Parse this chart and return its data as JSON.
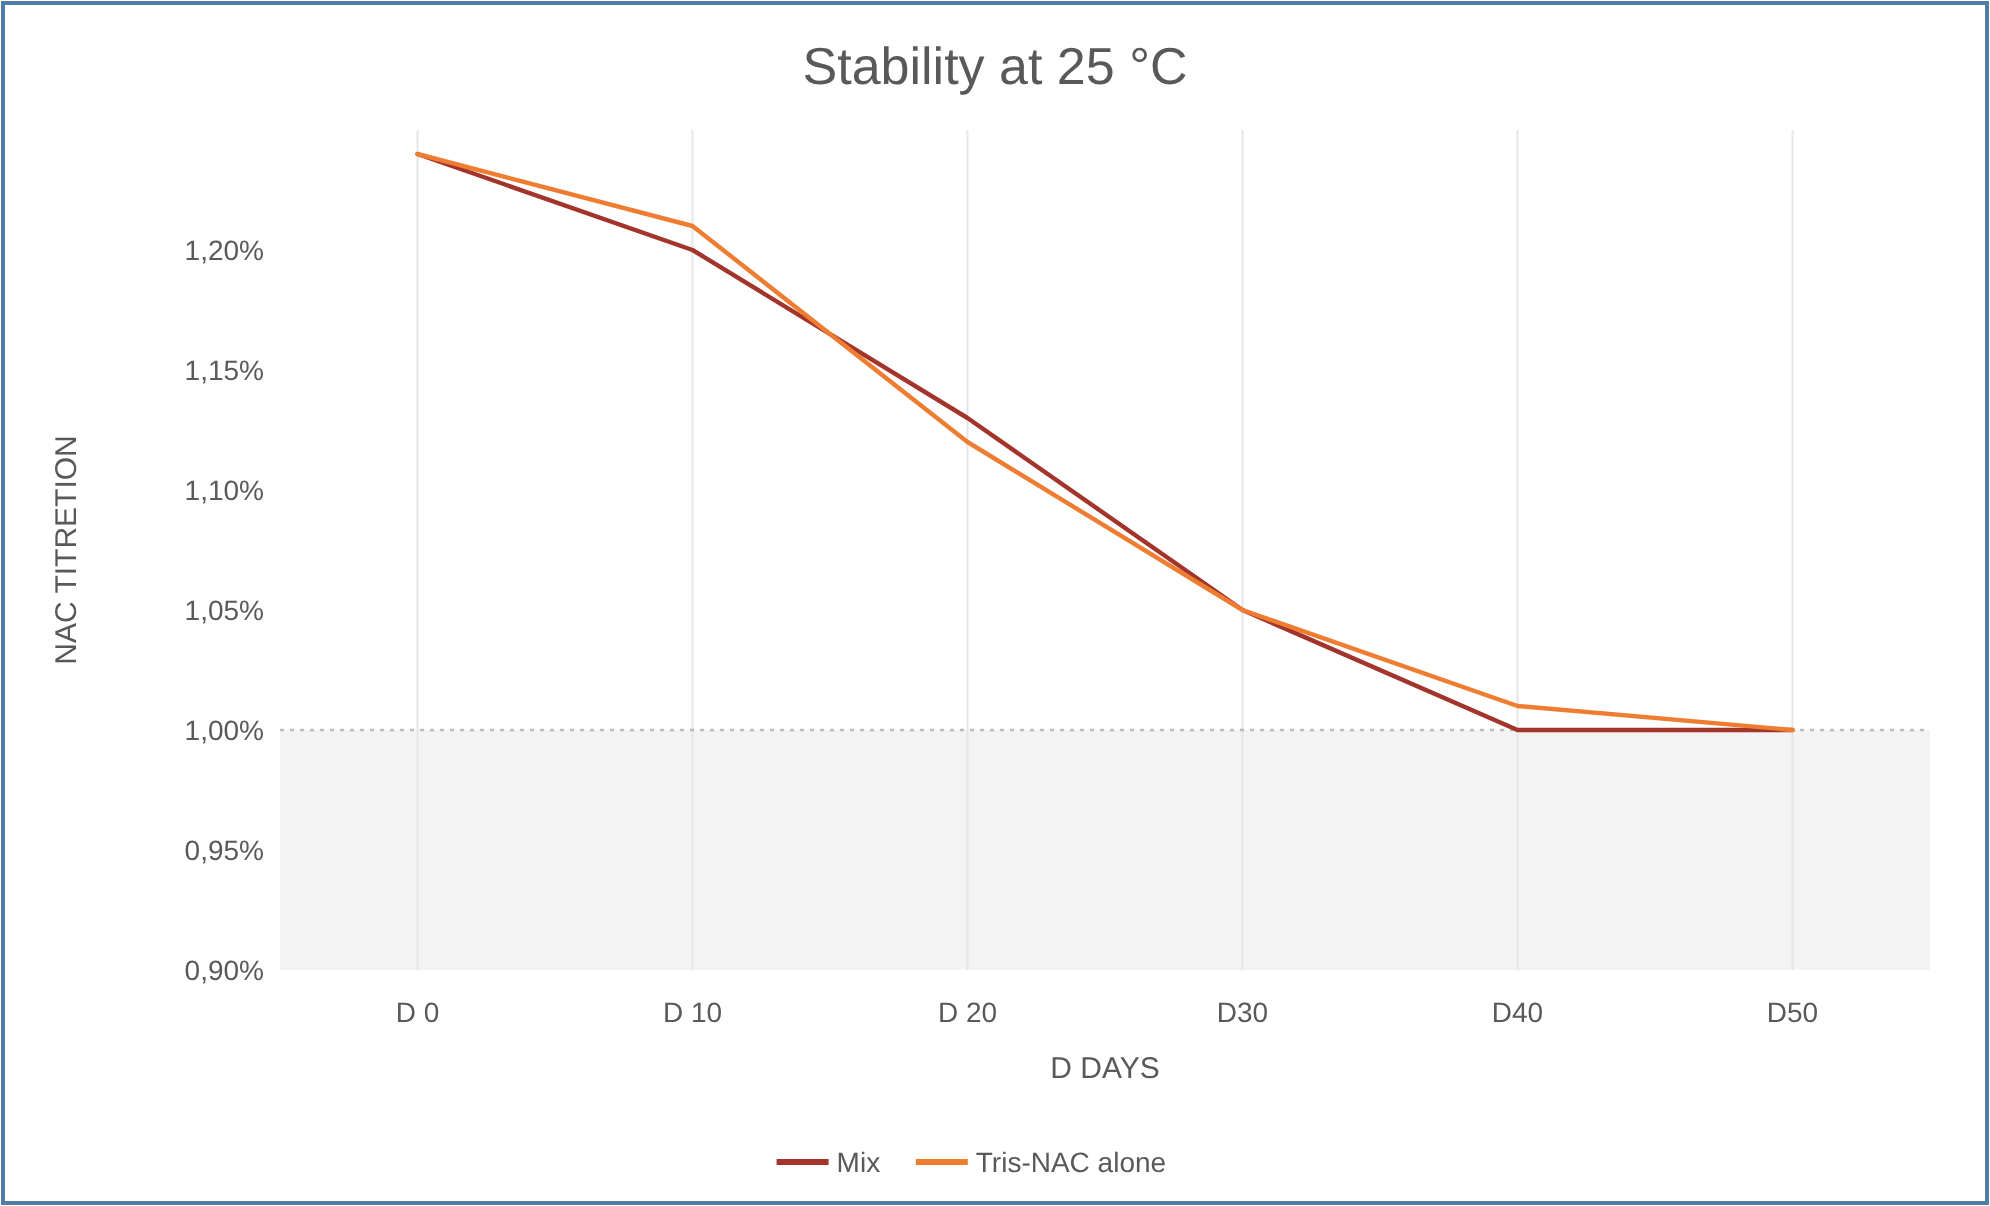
{
  "chart_data": {
    "type": "line",
    "title": "Stability at 25 °C",
    "xlabel": "D DAYS",
    "ylabel": "NAC TITRETION",
    "categories": [
      "D 0",
      "D 10",
      "D 20",
      "D30",
      "D40",
      "D50"
    ],
    "series": [
      {
        "name": "Mix",
        "color": "#a3342b",
        "values": [
          1.24,
          1.2,
          1.13,
          1.05,
          1.0,
          1.0
        ]
      },
      {
        "name": "Tris-NAC alone",
        "color": "#ee7d31",
        "values": [
          1.24,
          1.21,
          1.12,
          1.05,
          1.01,
          1.0
        ]
      }
    ],
    "ylim": [
      0.9,
      1.25
    ],
    "yticks": [
      {
        "value": 0.9,
        "label": "0,90%"
      },
      {
        "value": 0.95,
        "label": "0,95%"
      },
      {
        "value": 1.0,
        "label": "1,00%"
      },
      {
        "value": 1.05,
        "label": "1,05%"
      },
      {
        "value": 1.1,
        "label": "1,10%"
      },
      {
        "value": 1.15,
        "label": "1,15%"
      },
      {
        "value": 1.2,
        "label": "1,20%"
      }
    ],
    "ref_lines": [
      {
        "axis": "y",
        "value": 1.0,
        "color": "#bbbbbb",
        "line_style": "dotted"
      }
    ],
    "bands": [
      {
        "axis": "y",
        "from": 0.9,
        "to": 1.0,
        "color": "#f3f3f3"
      }
    ],
    "grid": "x",
    "legend": "bottom",
    "marker": "none",
    "line_style": "solid"
  }
}
